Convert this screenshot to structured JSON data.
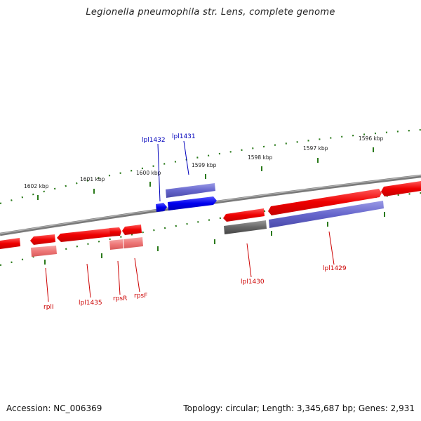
{
  "title": "Legionella pneumophila str. Lens, complete genome",
  "footer": {
    "accession": "Accession: NC_006369",
    "summary": "Topology: circular; Length: 3,345,687 bp; Genes: 2,931"
  },
  "colors": {
    "gene_red": "#ee0000",
    "gene_blue": "#0000ee",
    "feature_purple": "#6666cc",
    "feature_pink": "#ee7777",
    "feature_grey": "#666666",
    "backbone": "#888888",
    "tick_green": "#2a7a1a",
    "label_red": "#cc0000",
    "label_blue": "#0000bb"
  },
  "scale_labels": [
    "1602 kbp",
    "1601 kbp",
    "1600 kbp",
    "1599 kbp",
    "1598 kbp",
    "1597 kbp",
    "1596 kbp"
  ],
  "gene_labels": {
    "lpl1432": "lpl1432",
    "lpl1431": "lpl1431",
    "rplI": "rplI",
    "lpl1435": "lpl1435",
    "rpsR": "rpsR",
    "rpsF": "rpsF",
    "lpl1430": "lpl1430",
    "lpl1429": "lpl1429"
  }
}
